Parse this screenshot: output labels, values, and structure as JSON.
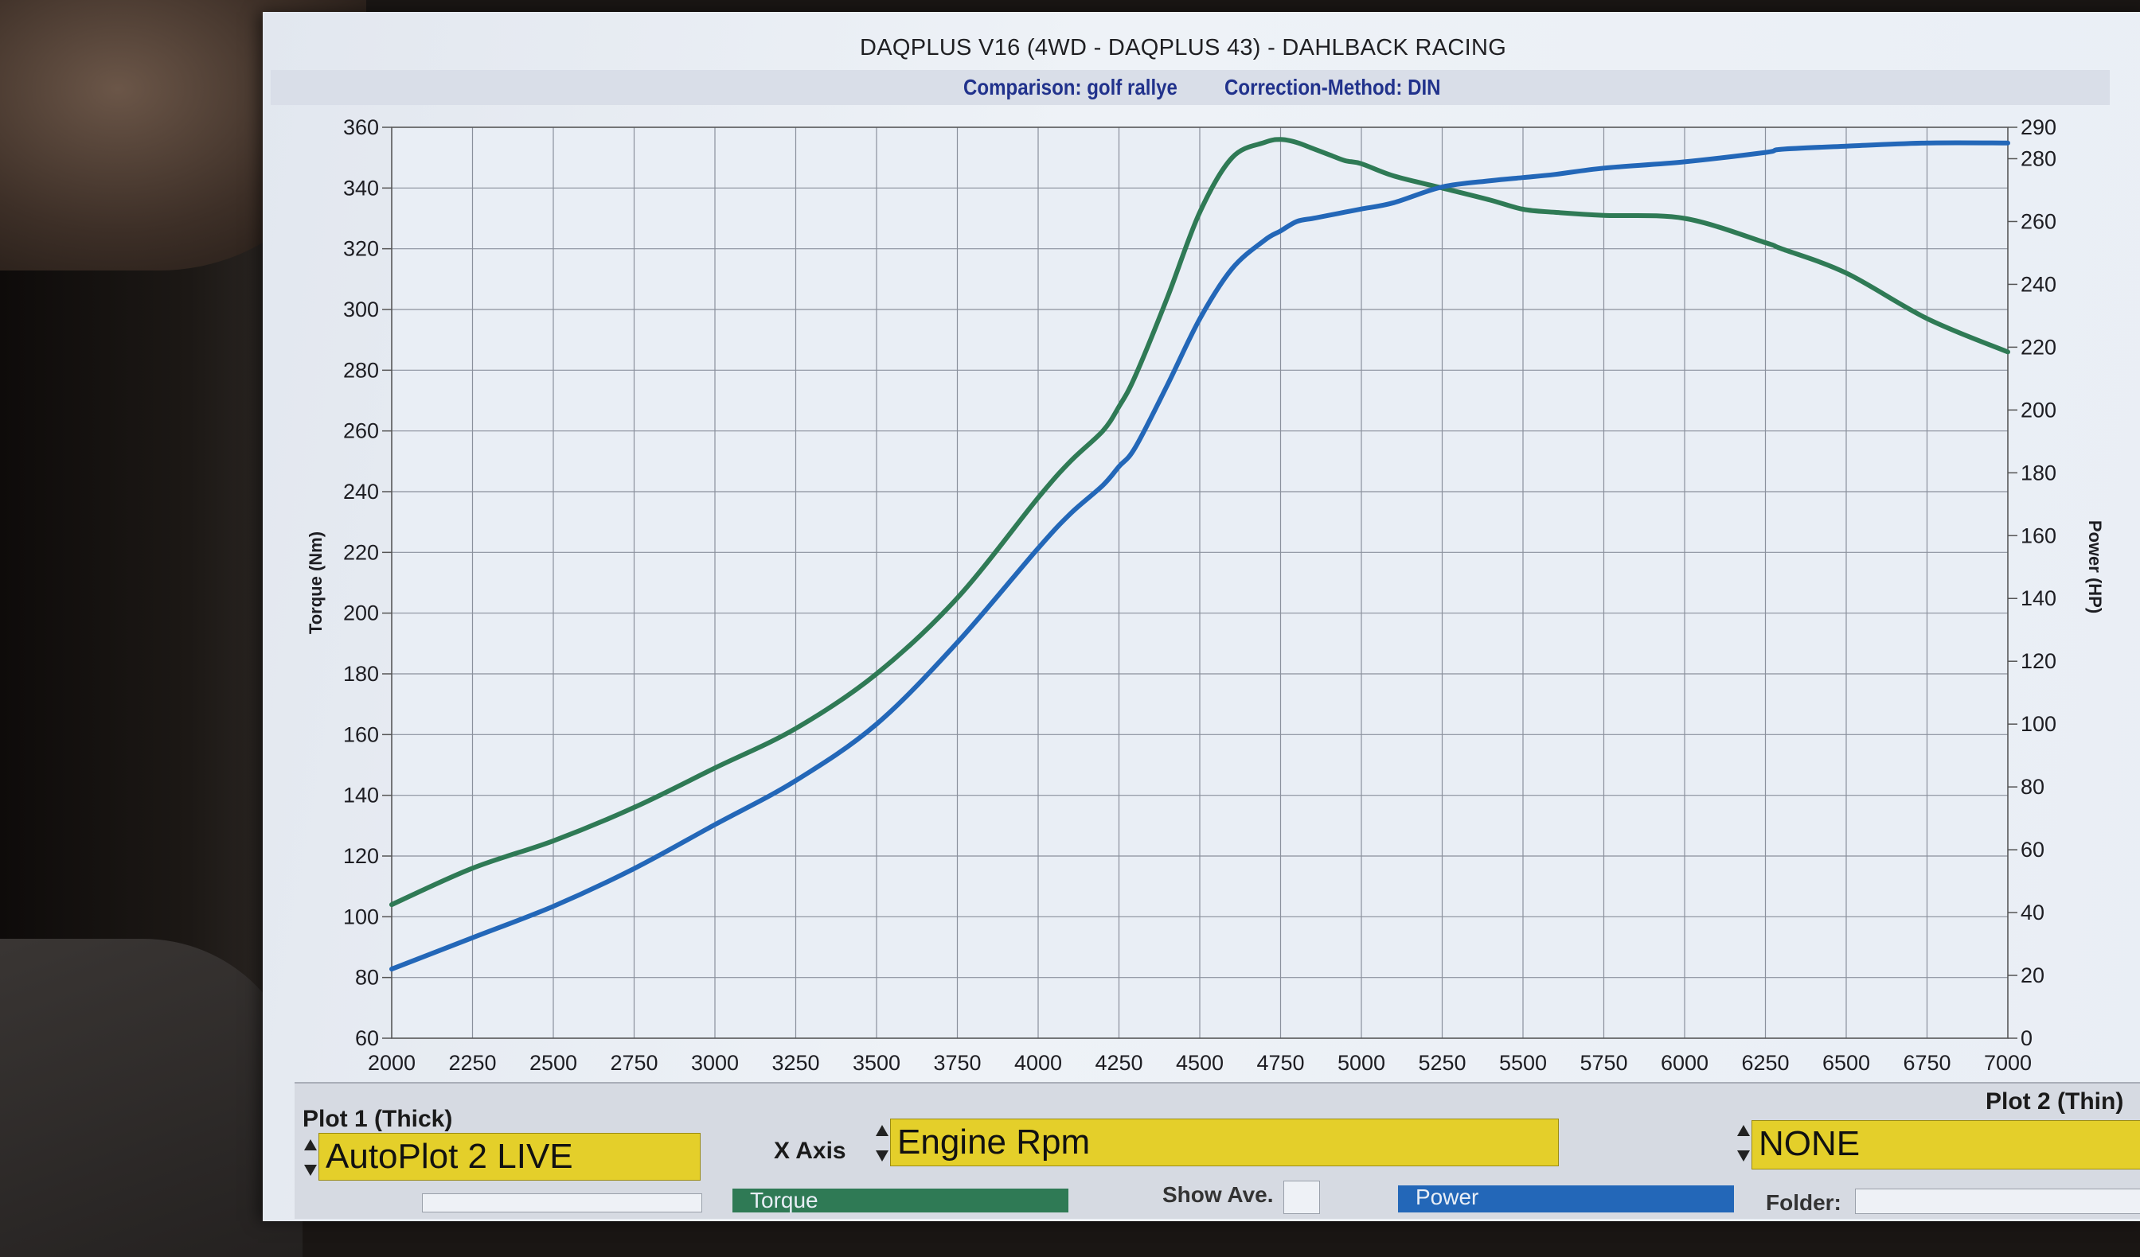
{
  "header": {
    "title": "DAQPLUS V16 (4WD - DAQPLUS 43) - DAHLBACK RACING",
    "comparison": "Comparison: golf rallye",
    "correction": "Correction-Method: DIN"
  },
  "chart_data": {
    "type": "line",
    "x": [
      2000,
      2250,
      2500,
      2750,
      3000,
      3250,
      3500,
      3750,
      4000,
      4100,
      4200,
      4250,
      4300,
      4400,
      4500,
      4600,
      4700,
      4750,
      4800,
      4850,
      4900,
      4950,
      5000,
      5100,
      5250,
      5400,
      5500,
      5600,
      5750,
      6000,
      6250,
      6300,
      6500,
      6750,
      7000
    ],
    "xlabel": "",
    "ylabel_left": "Torque (Nm)",
    "ylabel_right": "Power (HP)",
    "xlim": [
      2000,
      7000
    ],
    "ylim_left": [
      60,
      360
    ],
    "ylim_right": [
      0,
      290
    ],
    "x_ticks": [
      2000,
      2250,
      2500,
      2750,
      3000,
      3250,
      3500,
      3750,
      4000,
      4250,
      4500,
      4750,
      5000,
      5250,
      5500,
      5750,
      6000,
      6250,
      6500,
      6750,
      7000
    ],
    "y_ticks_left": [
      60,
      80,
      100,
      120,
      140,
      160,
      180,
      200,
      220,
      240,
      260,
      280,
      300,
      320,
      340,
      360
    ],
    "y_ticks_right": [
      0,
      20,
      40,
      60,
      80,
      100,
      120,
      140,
      160,
      180,
      200,
      220,
      240,
      260,
      280,
      290
    ],
    "grid": true,
    "series": [
      {
        "name": "Torque",
        "axis": "left",
        "color": "#2f7a55",
        "values": [
          104,
          116,
          125,
          136,
          149,
          162,
          180,
          205,
          238,
          250,
          260,
          268,
          278,
          304,
          332,
          350,
          355,
          356,
          355,
          353,
          351,
          349,
          348,
          344,
          340,
          336,
          333,
          332,
          331,
          330,
          322,
          320,
          312,
          297,
          286
        ]
      },
      {
        "name": "Power",
        "axis": "right",
        "color": "#2367b8",
        "values": [
          22,
          32,
          42,
          54,
          68,
          82,
          100,
          126,
          156,
          167,
          176,
          182,
          188,
          208,
          229,
          245,
          254,
          257,
          260,
          261,
          262,
          263,
          264,
          266,
          271,
          273,
          274,
          275,
          277,
          279,
          282,
          283,
          284,
          285,
          285
        ]
      }
    ]
  },
  "controls": {
    "plot1_label": "Plot 1 (Thick)",
    "plot1_value": "AutoPlot 2 LIVE",
    "xaxis_label": "X Axis",
    "xaxis_value": "Engine Rpm",
    "plot2_label": "Plot 2 (Thin)",
    "plot2_value": "NONE",
    "show_ave_label": "Show Ave.",
    "torque_stub": "Torque",
    "power_stub": "Power",
    "folder_label": "Folder:"
  }
}
